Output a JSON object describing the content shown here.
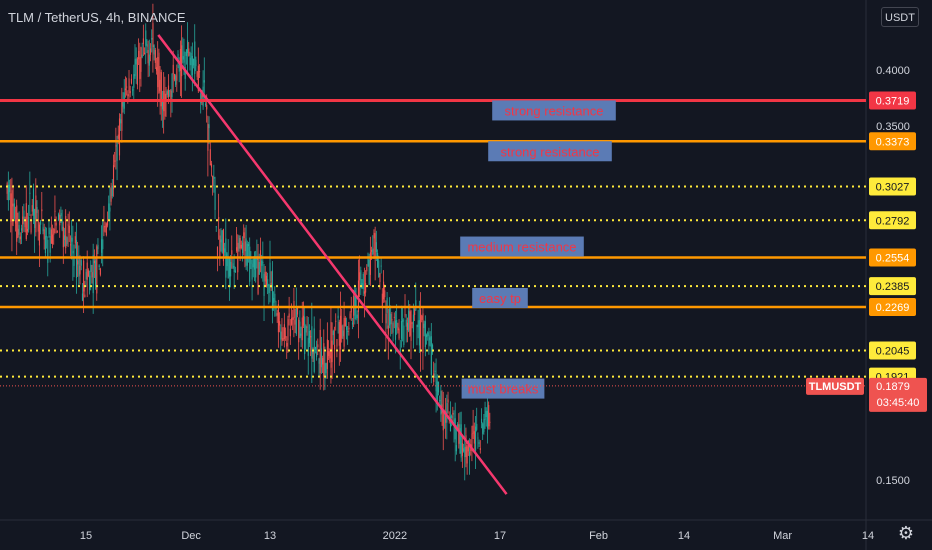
{
  "header": {
    "symbol_title": "TLM / TetherUS, 4h, BINANCE",
    "currency_button": "USDT",
    "settings_icon": "gear-icon"
  },
  "colors": {
    "background": "#131722",
    "up_candle": "#26a69a",
    "down_candle": "#ef5350",
    "resistance_red": "#f23645",
    "resistance_orange": "#ff9800",
    "dotted_yellow": "#ffeb3b",
    "trendline": "#f5386e",
    "annotation_box": "#5b7bb5",
    "annotation_text": "#f23645",
    "axis_text": "#d1d4dc"
  },
  "chart_data": {
    "type": "candlestick",
    "symbol": "TLMUSDT",
    "interval": "4h",
    "exchange": "BINANCE",
    "y_axis_ticks": [
      "0.4000",
      "0.3500",
      "0.1500"
    ],
    "x_axis_ticks": [
      "15",
      "Dec",
      "13",
      "2022",
      "17",
      "Feb",
      "14",
      "Mar",
      "14"
    ],
    "horizontal_levels": [
      {
        "price": 0.3719,
        "label": "0.3719",
        "style": "solid",
        "color": "#f23645"
      },
      {
        "price": 0.3373,
        "label": "0.3373",
        "style": "solid",
        "color": "#ff9800"
      },
      {
        "price": 0.3027,
        "label": "0.3027",
        "style": "dotted",
        "color": "#ffeb3b"
      },
      {
        "price": 0.2792,
        "label": "0.2792",
        "style": "dotted",
        "color": "#ffeb3b"
      },
      {
        "price": 0.2554,
        "label": "0.2554",
        "style": "solid",
        "color": "#ff9800"
      },
      {
        "price": 0.2385,
        "label": "0.2385",
        "style": "dotted",
        "color": "#ffeb3b"
      },
      {
        "price": 0.2269,
        "label": "0.2269",
        "style": "solid",
        "color": "#ff9800"
      },
      {
        "price": 0.2045,
        "label": "0.2045",
        "style": "dotted",
        "color": "#ffeb3b"
      },
      {
        "price": 0.1921,
        "label": "0.1921",
        "style": "dotted",
        "color": "#ffeb3b"
      }
    ],
    "current_price": {
      "symbol": "TLMUSDT",
      "price": "0.1879",
      "countdown": "03:45:40"
    },
    "annotations": [
      {
        "text": "strong resistance",
        "level": 0.3719
      },
      {
        "text": "strong resistance",
        "level": 0.3373
      },
      {
        "text": "medium resistance",
        "level": 0.2554
      },
      {
        "text": "easy tp",
        "level": 0.2269
      },
      {
        "text": "must breaks",
        "level": 0.1921
      }
    ],
    "trendline": {
      "from": {
        "date": "2021-11-26",
        "price": 0.435
      },
      "to": {
        "date": "2022-01-18",
        "price": 0.145
      }
    },
    "ohlc_anchors": [
      [
        "2021-11-03",
        0.3
      ],
      [
        "2021-11-05",
        0.27
      ],
      [
        "2021-11-07",
        0.29
      ],
      [
        "2021-11-09",
        0.26
      ],
      [
        "2021-11-11",
        0.28
      ],
      [
        "2021-11-13",
        0.26
      ],
      [
        "2021-11-15",
        0.24
      ],
      [
        "2021-11-17",
        0.25
      ],
      [
        "2021-11-19",
        0.3
      ],
      [
        "2021-11-21",
        0.38
      ],
      [
        "2021-11-23",
        0.4
      ],
      [
        "2021-11-25",
        0.43
      ],
      [
        "2021-11-27",
        0.37
      ],
      [
        "2021-11-29",
        0.4
      ],
      [
        "2021-12-01",
        0.42
      ],
      [
        "2021-12-03",
        0.38
      ],
      [
        "2021-12-05",
        0.27
      ],
      [
        "2021-12-07",
        0.25
      ],
      [
        "2021-12-09",
        0.26
      ],
      [
        "2021-12-11",
        0.25
      ],
      [
        "2021-12-13",
        0.24
      ],
      [
        "2021-12-15",
        0.21
      ],
      [
        "2021-12-17",
        0.22
      ],
      [
        "2021-12-19",
        0.21
      ],
      [
        "2021-12-21",
        0.2
      ],
      [
        "2021-12-23",
        0.21
      ],
      [
        "2021-12-25",
        0.22
      ],
      [
        "2021-12-27",
        0.24
      ],
      [
        "2021-12-29",
        0.26
      ],
      [
        "2021-12-31",
        0.22
      ],
      [
        "2022-01-02",
        0.21
      ],
      [
        "2022-01-04",
        0.22
      ],
      [
        "2022-01-06",
        0.21
      ],
      [
        "2022-01-08",
        0.18
      ],
      [
        "2022-01-10",
        0.17
      ],
      [
        "2022-01-12",
        0.16
      ],
      [
        "2022-01-14",
        0.17
      ],
      [
        "2022-01-16",
        0.18
      ],
      [
        "2022-01-17",
        0.1879
      ]
    ]
  }
}
